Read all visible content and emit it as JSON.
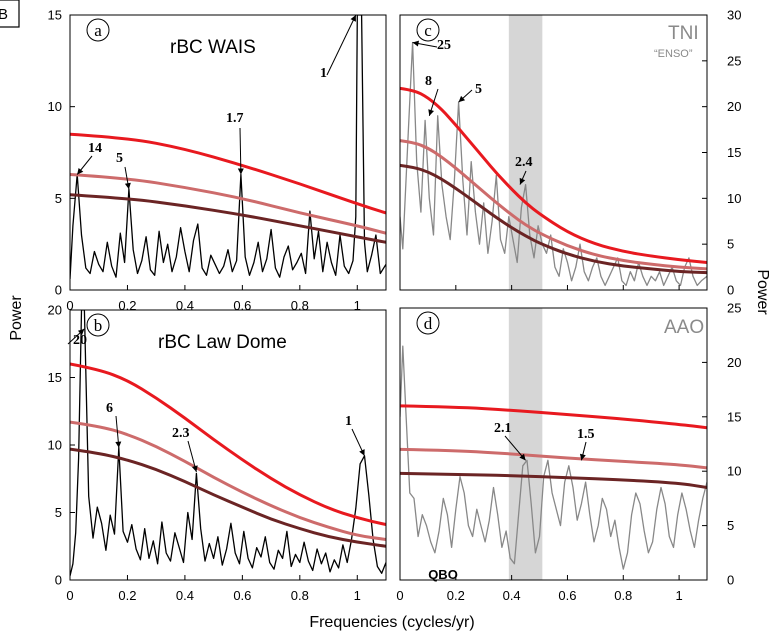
{
  "figure_label": "B",
  "x_axis_title": "Frequencies (cycles/yr)",
  "left_axis_title": "Power",
  "right_axis_title": "Power",
  "colors": {
    "series_a_b": "#000000",
    "series_c_d": "#888888",
    "ci_high": "#e8191f",
    "ci_mid": "#cd6b6b",
    "ci_low": "#6b2424",
    "qbo_band": "#d6d6d6"
  },
  "chart_data": [
    {
      "type": "line",
      "panel_letter": "a",
      "title": "rBC WAIS",
      "xlim": [
        0,
        1.1
      ],
      "ylim": [
        0,
        15
      ],
      "x_ticks": [
        "0",
        "0.2",
        "0.4",
        "0.6",
        "0.8",
        "1"
      ],
      "y_ticks": [
        "0",
        "5",
        "10",
        "15"
      ],
      "ci_curves": {
        "high": {
          "x": [
            0,
            0.2,
            0.4,
            0.6,
            0.8,
            1.0,
            1.1
          ],
          "y": [
            8.5,
            8.3,
            7.7,
            6.8,
            5.8,
            4.7,
            4.2
          ]
        },
        "mid": {
          "x": [
            0,
            0.2,
            0.4,
            0.6,
            0.8,
            1.0,
            1.1
          ],
          "y": [
            6.3,
            6.1,
            5.6,
            5.0,
            4.2,
            3.5,
            3.1
          ]
        },
        "low": {
          "x": [
            0,
            0.2,
            0.4,
            0.6,
            0.8,
            1.0,
            1.1
          ],
          "y": [
            5.2,
            5.0,
            4.6,
            4.1,
            3.5,
            2.9,
            2.6
          ]
        }
      },
      "spectrum": {
        "x": [
          0,
          0.01,
          0.025,
          0.04,
          0.055,
          0.07,
          0.085,
          0.1,
          0.115,
          0.13,
          0.145,
          0.16,
          0.175,
          0.19,
          0.205,
          0.22,
          0.235,
          0.25,
          0.265,
          0.28,
          0.295,
          0.31,
          0.325,
          0.34,
          0.355,
          0.37,
          0.385,
          0.4,
          0.415,
          0.43,
          0.445,
          0.46,
          0.475,
          0.49,
          0.505,
          0.52,
          0.535,
          0.55,
          0.565,
          0.58,
          0.595,
          0.61,
          0.625,
          0.64,
          0.655,
          0.67,
          0.685,
          0.7,
          0.715,
          0.73,
          0.745,
          0.76,
          0.775,
          0.79,
          0.805,
          0.82,
          0.835,
          0.85,
          0.865,
          0.88,
          0.895,
          0.91,
          0.925,
          0.94,
          0.955,
          0.97,
          0.985,
          0.995,
          1.0,
          1.015,
          1.025,
          1.035,
          1.05,
          1.065,
          1.08,
          1.1
        ],
        "y": [
          0.6,
          3.5,
          6.3,
          3.0,
          1.2,
          0.9,
          2.1,
          1.4,
          1.0,
          2.6,
          1.3,
          0.7,
          3.1,
          1.5,
          5.5,
          2.2,
          0.9,
          1.6,
          2.9,
          1.1,
          0.8,
          3.2,
          1.5,
          2.5,
          1.0,
          1.8,
          3.4,
          2.1,
          1.0,
          2.7,
          3.6,
          1.2,
          0.8,
          1.9,
          1.4,
          0.9,
          1.3,
          2.2,
          1.0,
          1.6,
          6.3,
          1.8,
          0.8,
          1.5,
          2.6,
          1.0,
          1.7,
          3.3,
          1.2,
          0.7,
          1.8,
          2.4,
          1.1,
          1.5,
          2.0,
          0.9,
          4.3,
          1.7,
          3.2,
          1.0,
          2.6,
          1.5,
          0.8,
          3.0,
          1.3,
          0.9,
          1.6,
          4.0,
          15.0,
          15.0,
          2.6,
          1.0,
          1.9,
          3.0,
          0.9,
          1.4
        ]
      },
      "annotations": [
        "14",
        "5",
        "1.7",
        "1"
      ]
    },
    {
      "type": "line",
      "panel_letter": "b",
      "title": "rBC Law Dome",
      "xlim": [
        0,
        1.1
      ],
      "ylim": [
        0,
        20
      ],
      "x_ticks": [
        "0",
        "0.2",
        "0.4",
        "0.6",
        "0.8",
        "1"
      ],
      "y_ticks": [
        "0",
        "5",
        "10",
        "15",
        "20"
      ],
      "ci_curves": {
        "high": {
          "x": [
            0,
            0.1,
            0.2,
            0.3,
            0.4,
            0.5,
            0.6,
            0.7,
            0.8,
            0.9,
            1.0,
            1.1
          ],
          "y": [
            16.0,
            15.6,
            14.8,
            13.5,
            12.0,
            10.4,
            8.9,
            7.5,
            6.3,
            5.3,
            4.6,
            4.1
          ]
        },
        "mid": {
          "x": [
            0,
            0.1,
            0.2,
            0.3,
            0.4,
            0.5,
            0.6,
            0.7,
            0.8,
            0.9,
            1.0,
            1.1
          ],
          "y": [
            11.7,
            11.4,
            10.8,
            9.9,
            8.8,
            7.6,
            6.5,
            5.5,
            4.6,
            3.9,
            3.3,
            3.0
          ]
        },
        "low": {
          "x": [
            0,
            0.1,
            0.2,
            0.3,
            0.4,
            0.5,
            0.6,
            0.7,
            0.8,
            0.9,
            1.0,
            1.1
          ],
          "y": [
            9.7,
            9.4,
            8.9,
            8.2,
            7.3,
            6.3,
            5.4,
            4.5,
            3.8,
            3.2,
            2.8,
            2.5
          ]
        }
      },
      "spectrum": {
        "x": [
          0,
          0.01,
          0.02,
          0.03,
          0.04,
          0.05,
          0.065,
          0.08,
          0.095,
          0.11,
          0.125,
          0.14,
          0.155,
          0.17,
          0.185,
          0.2,
          0.215,
          0.23,
          0.245,
          0.26,
          0.275,
          0.29,
          0.305,
          0.32,
          0.335,
          0.35,
          0.365,
          0.38,
          0.395,
          0.41,
          0.425,
          0.44,
          0.455,
          0.47,
          0.485,
          0.5,
          0.515,
          0.53,
          0.545,
          0.56,
          0.575,
          0.59,
          0.605,
          0.62,
          0.635,
          0.65,
          0.665,
          0.68,
          0.695,
          0.71,
          0.725,
          0.74,
          0.755,
          0.77,
          0.785,
          0.8,
          0.815,
          0.83,
          0.845,
          0.86,
          0.875,
          0.89,
          0.905,
          0.92,
          0.935,
          0.95,
          0.965,
          0.98,
          0.995,
          1.01,
          1.025,
          1.04,
          1.055,
          1.07,
          1.085,
          1.1
        ],
        "y": [
          0.3,
          1.2,
          3.5,
          9.0,
          20.0,
          20.0,
          6.2,
          3.1,
          5.4,
          4.2,
          2.2,
          4.8,
          3.4,
          9.8,
          3.6,
          2.8,
          4.1,
          2.3,
          1.5,
          3.8,
          1.6,
          2.9,
          1.2,
          4.3,
          2.0,
          1.4,
          3.5,
          2.4,
          1.3,
          5.0,
          3.0,
          7.9,
          3.8,
          1.4,
          2.7,
          1.6,
          3.2,
          1.1,
          2.3,
          4.2,
          2.0,
          1.2,
          3.6,
          1.6,
          0.9,
          2.4,
          1.7,
          3.2,
          1.3,
          0.8,
          2.2,
          1.6,
          3.6,
          1.0,
          1.9,
          1.3,
          2.8,
          1.4,
          0.7,
          2.3,
          1.2,
          2.0,
          0.6,
          1.5,
          0.9,
          2.6,
          1.3,
          3.0,
          5.3,
          8.6,
          9.2,
          6.3,
          3.0,
          1.0,
          0.5,
          1.3
        ]
      },
      "annotations": [
        "20",
        "6",
        "2.3",
        "1"
      ]
    },
    {
      "type": "line",
      "panel_letter": "c",
      "title": "TNI",
      "subtitle": "“ENSO”",
      "xlim": [
        0,
        1.1
      ],
      "ylim": [
        0,
        30
      ],
      "x_ticks": [],
      "y_ticks": [
        "0",
        "5",
        "10",
        "15",
        "20",
        "25",
        "30"
      ],
      "shaded_band": {
        "x": [
          0.39,
          0.51
        ]
      },
      "ci_curves": {
        "high": {
          "x": [
            0,
            0.05,
            0.1,
            0.15,
            0.2,
            0.25,
            0.3,
            0.35,
            0.4,
            0.45,
            0.5,
            0.6,
            0.7,
            0.8,
            0.9,
            1.0,
            1.1
          ],
          "y": [
            22.0,
            21.8,
            21.0,
            19.7,
            18.0,
            16.2,
            14.4,
            12.6,
            11.0,
            9.5,
            8.3,
            6.3,
            5.0,
            4.2,
            3.7,
            3.3,
            3.0
          ]
        },
        "mid": {
          "x": [
            0,
            0.05,
            0.1,
            0.15,
            0.2,
            0.25,
            0.3,
            0.35,
            0.4,
            0.45,
            0.5,
            0.6,
            0.7,
            0.8,
            0.9,
            1.0,
            1.1
          ],
          "y": [
            16.3,
            16.1,
            15.5,
            14.5,
            13.3,
            12.0,
            10.7,
            9.4,
            8.2,
            7.1,
            6.2,
            4.8,
            3.8,
            3.2,
            2.8,
            2.5,
            2.3
          ]
        },
        "low": {
          "x": [
            0,
            0.05,
            0.1,
            0.15,
            0.2,
            0.25,
            0.3,
            0.35,
            0.4,
            0.45,
            0.5,
            0.6,
            0.7,
            0.8,
            0.9,
            1.0,
            1.1
          ],
          "y": [
            13.6,
            13.4,
            12.9,
            12.1,
            11.1,
            10.0,
            8.9,
            7.8,
            6.8,
            5.9,
            5.1,
            3.9,
            3.1,
            2.6,
            2.3,
            2.0,
            1.9
          ]
        }
      },
      "spectrum": {
        "x": [
          0,
          0.01,
          0.02,
          0.03,
          0.045,
          0.06,
          0.075,
          0.09,
          0.105,
          0.12,
          0.135,
          0.15,
          0.165,
          0.18,
          0.195,
          0.21,
          0.225,
          0.24,
          0.255,
          0.27,
          0.285,
          0.3,
          0.315,
          0.33,
          0.345,
          0.36,
          0.375,
          0.39,
          0.405,
          0.42,
          0.435,
          0.45,
          0.465,
          0.48,
          0.495,
          0.51,
          0.525,
          0.54,
          0.555,
          0.57,
          0.585,
          0.6,
          0.615,
          0.63,
          0.645,
          0.66,
          0.675,
          0.69,
          0.705,
          0.72,
          0.735,
          0.75,
          0.765,
          0.78,
          0.795,
          0.81,
          0.825,
          0.84,
          0.855,
          0.87,
          0.885,
          0.9,
          0.915,
          0.93,
          0.945,
          0.96,
          0.975,
          0.99,
          1.005,
          1.02,
          1.035,
          1.05,
          1.065,
          1.08,
          1.1
        ],
        "y": [
          8.0,
          4.5,
          11.0,
          17.5,
          27.0,
          14.0,
          8.5,
          18.5,
          10.0,
          6.0,
          19.0,
          11.5,
          8.0,
          5.5,
          12.0,
          20.5,
          12.0,
          6.0,
          14.0,
          8.5,
          5.0,
          9.5,
          4.0,
          7.5,
          12.5,
          5.5,
          4.0,
          8.0,
          5.5,
          3.0,
          9.0,
          11.5,
          6.0,
          3.5,
          7.0,
          5.0,
          4.0,
          6.0,
          2.5,
          1.5,
          4.5,
          3.0,
          1.0,
          2.5,
          5.0,
          2.0,
          1.0,
          2.5,
          3.5,
          1.5,
          0.5,
          1.5,
          2.5,
          3.5,
          1.0,
          0.5,
          2.0,
          1.0,
          3.0,
          1.5,
          0.5,
          1.5,
          1.0,
          2.0,
          0.5,
          1.5,
          2.5,
          1.0,
          0.5,
          2.5,
          3.5,
          1.5,
          0.5,
          1.0,
          1.5
        ]
      },
      "annotations": [
        "25",
        "8",
        "5",
        "2.4"
      ]
    },
    {
      "type": "line",
      "panel_letter": "d",
      "title": "AAO",
      "band_label": "QBO",
      "xlim": [
        0,
        1.1
      ],
      "ylim": [
        0,
        25
      ],
      "x_ticks": [
        "0",
        "0.2",
        "0.4",
        "0.6",
        "0.8",
        "1"
      ],
      "y_ticks": [
        "0",
        "5",
        "10",
        "15",
        "20",
        "25"
      ],
      "shaded_band": {
        "x": [
          0.39,
          0.51
        ]
      },
      "ci_curves": {
        "high": {
          "x": [
            0,
            0.2,
            0.4,
            0.6,
            0.8,
            1.0,
            1.1
          ],
          "y": [
            16.0,
            15.9,
            15.6,
            15.2,
            14.8,
            14.3,
            14.0
          ]
        },
        "mid": {
          "x": [
            0,
            0.2,
            0.4,
            0.6,
            0.8,
            1.0,
            1.1
          ],
          "y": [
            12.0,
            11.9,
            11.6,
            11.2,
            10.9,
            10.6,
            10.3
          ]
        },
        "low": {
          "x": [
            0,
            0.2,
            0.4,
            0.6,
            0.8,
            1.0,
            1.1
          ],
          "y": [
            9.8,
            9.7,
            9.6,
            9.4,
            9.2,
            8.9,
            8.5
          ]
        }
      },
      "spectrum": {
        "x": [
          0,
          0.01,
          0.02,
          0.035,
          0.05,
          0.065,
          0.08,
          0.095,
          0.11,
          0.125,
          0.14,
          0.155,
          0.17,
          0.185,
          0.2,
          0.215,
          0.23,
          0.245,
          0.26,
          0.275,
          0.29,
          0.305,
          0.32,
          0.335,
          0.35,
          0.365,
          0.38,
          0.395,
          0.41,
          0.425,
          0.44,
          0.455,
          0.47,
          0.485,
          0.5,
          0.515,
          0.53,
          0.545,
          0.56,
          0.575,
          0.59,
          0.605,
          0.62,
          0.635,
          0.65,
          0.665,
          0.68,
          0.695,
          0.71,
          0.725,
          0.74,
          0.755,
          0.77,
          0.785,
          0.8,
          0.815,
          0.83,
          0.845,
          0.86,
          0.875,
          0.89,
          0.905,
          0.92,
          0.935,
          0.95,
          0.965,
          0.98,
          0.995,
          1.01,
          1.025,
          1.04,
          1.055,
          1.07,
          1.085,
          1.1
        ],
        "y": [
          15.0,
          21.5,
          16.0,
          8.0,
          7.5,
          4.0,
          6.0,
          5.0,
          3.5,
          2.5,
          4.5,
          7.5,
          6.0,
          3.0,
          6.5,
          9.5,
          8.0,
          5.0,
          4.0,
          6.5,
          5.0,
          3.5,
          5.5,
          8.5,
          6.0,
          3.0,
          4.5,
          2.0,
          1.5,
          6.0,
          10.5,
          11.0,
          7.0,
          2.5,
          4.0,
          9.5,
          11.0,
          8.0,
          6.5,
          5.0,
          9.0,
          10.5,
          8.5,
          5.5,
          7.0,
          9.0,
          6.0,
          3.5,
          5.0,
          7.5,
          6.5,
          4.0,
          5.5,
          3.0,
          1.0,
          2.5,
          6.0,
          8.0,
          7.0,
          4.5,
          2.5,
          3.5,
          6.5,
          8.5,
          7.0,
          4.0,
          3.0,
          6.0,
          8.0,
          6.5,
          4.5,
          3.0,
          5.5,
          7.5,
          9.0
        ]
      },
      "annotations": [
        "2.1",
        "1.5"
      ]
    }
  ]
}
